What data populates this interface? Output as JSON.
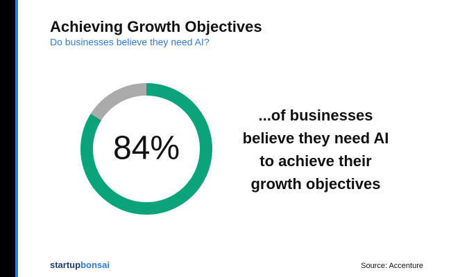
{
  "chart_data": {
    "type": "donut",
    "title": "Achieving Growth Objectives",
    "subtitle": "Do businesses believe they need AI?",
    "values": [
      84,
      16
    ],
    "value_labels": [
      "84%",
      null
    ],
    "colors": [
      "#0aa37a",
      "#aaaaaa"
    ],
    "annotation": [
      "...of businesses",
      "believe they need AI",
      "to achieve their",
      "growth objectives"
    ]
  },
  "footer": {
    "brand": [
      "startup",
      "bonsai"
    ],
    "source": "Source: Accenture"
  }
}
